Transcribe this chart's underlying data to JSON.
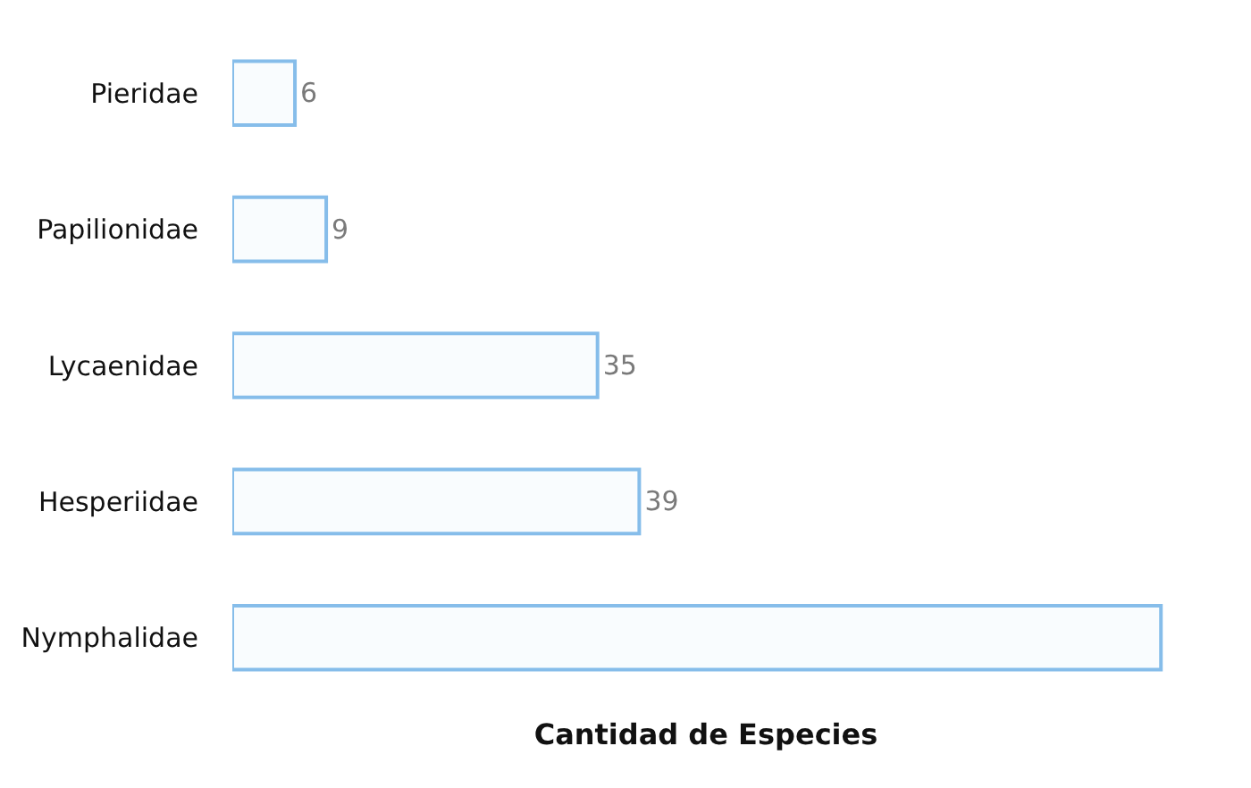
{
  "chart_data": {
    "type": "bar",
    "orientation": "horizontal",
    "xlabel": "Cantidad de Especies",
    "categories": [
      "Pieridae",
      "Papilionidae",
      "Lycaenidae",
      "Hesperiidae",
      "Nymphalidae"
    ],
    "values": [
      6,
      9,
      35,
      39,
      89
    ],
    "value_labels": [
      "6",
      "9",
      "35",
      "39",
      null
    ],
    "color": "#86bdea",
    "tick_labels": "y"
  }
}
